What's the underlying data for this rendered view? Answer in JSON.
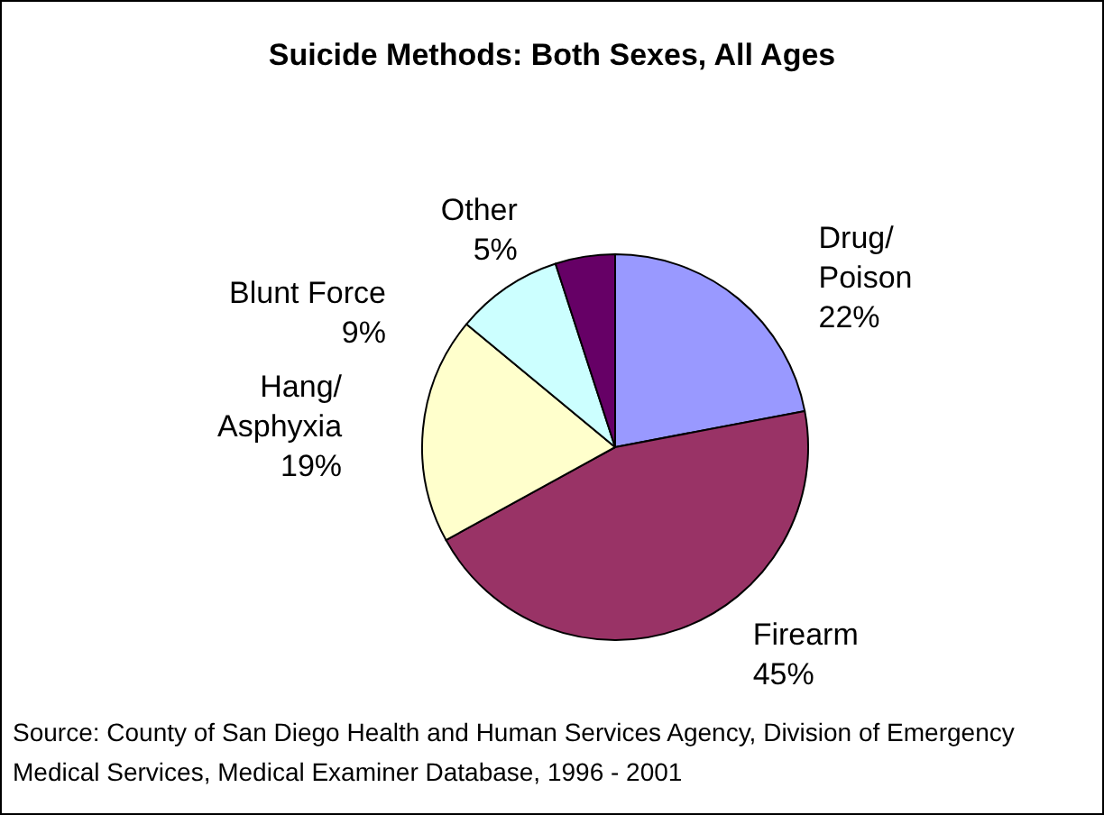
{
  "chart_data": {
    "type": "pie",
    "title": "Suicide Methods: Both Sexes, All Ages",
    "categories": [
      "Drug/ Poison",
      "Firearm",
      "Hang/ Asphyxia",
      "Blunt Force",
      "Other"
    ],
    "values": [
      22,
      45,
      19,
      9,
      5
    ],
    "colors": [
      "#9999ff",
      "#993366",
      "#ffffcc",
      "#ccffff",
      "#660066"
    ],
    "value_labels": [
      "22%",
      "45%",
      "19%",
      "9%",
      "5%"
    ],
    "legend": false,
    "annotations": [
      "Source: County of San Diego Health and Human Services Agency, Division of Emergency Medical Services, Medical Examiner Database, 1996 - 2001"
    ]
  }
}
